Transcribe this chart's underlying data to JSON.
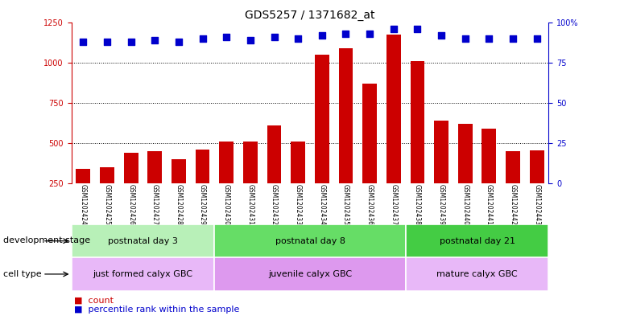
{
  "title": "GDS5257 / 1371682_at",
  "samples": [
    "GSM1202424",
    "GSM1202425",
    "GSM1202426",
    "GSM1202427",
    "GSM1202428",
    "GSM1202429",
    "GSM1202430",
    "GSM1202431",
    "GSM1202432",
    "GSM1202433",
    "GSM1202434",
    "GSM1202435",
    "GSM1202436",
    "GSM1202437",
    "GSM1202438",
    "GSM1202439",
    "GSM1202440",
    "GSM1202441",
    "GSM1202442",
    "GSM1202443"
  ],
  "counts": [
    340,
    350,
    440,
    450,
    400,
    460,
    510,
    510,
    610,
    510,
    1050,
    1090,
    870,
    1175,
    1010,
    640,
    620,
    590,
    450,
    455
  ],
  "percentiles": [
    88,
    88,
    88,
    89,
    88,
    90,
    91,
    89,
    91,
    90,
    92,
    93,
    93,
    96,
    96,
    92,
    90,
    90,
    90,
    90
  ],
  "bar_color": "#cc0000",
  "dot_color": "#0000cc",
  "ylim_left": [
    250,
    1250
  ],
  "ylim_right": [
    0,
    100
  ],
  "yticks_left": [
    250,
    500,
    750,
    1000,
    1250
  ],
  "yticks_right": [
    0,
    25,
    50,
    75,
    100
  ],
  "grid_values": [
    500,
    750,
    1000
  ],
  "dev_stage_groups": [
    {
      "label": "postnatal day 3",
      "start": 0,
      "end": 6,
      "color": "#b8f0b8"
    },
    {
      "label": "postnatal day 8",
      "start": 6,
      "end": 14,
      "color": "#66dd66"
    },
    {
      "label": "postnatal day 21",
      "start": 14,
      "end": 20,
      "color": "#44cc44"
    }
  ],
  "cell_type_groups": [
    {
      "label": "just formed calyx GBC",
      "start": 0,
      "end": 6,
      "color": "#e8b8f8"
    },
    {
      "label": "juvenile calyx GBC",
      "start": 6,
      "end": 14,
      "color": "#dd99ee"
    },
    {
      "label": "mature calyx GBC",
      "start": 14,
      "end": 20,
      "color": "#e8b8f8"
    }
  ],
  "dev_stage_label": "development stage",
  "cell_type_label": "cell type",
  "legend_count_label": "count",
  "legend_pct_label": "percentile rank within the sample",
  "bg_color": "#ffffff",
  "bar_width": 0.6,
  "dot_size": 30,
  "title_fontsize": 10,
  "tick_fontsize": 7,
  "label_fontsize": 8,
  "annot_fontsize": 8,
  "sample_fontsize": 5.5
}
